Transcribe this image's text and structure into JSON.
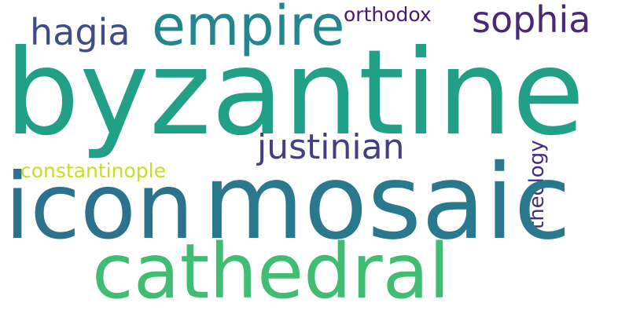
{
  "words": {
    "byzantine": {
      "text": "byzantine",
      "weight": 1.0,
      "color": "#21a087"
    },
    "mosaic": {
      "text": "mosaic",
      "weight": 0.95,
      "color": "#2a788e"
    },
    "icon": {
      "text": "icon",
      "weight": 0.8,
      "color": "#2c718e"
    },
    "cathedral": {
      "text": "cathedral",
      "weight": 0.7,
      "color": "#40bd72"
    },
    "empire": {
      "text": "empire",
      "weight": 0.45,
      "color": "#25858e"
    },
    "hagia": {
      "text": "hagia",
      "weight": 0.3,
      "color": "#3e4c8a"
    },
    "sophia": {
      "text": "sophia",
      "weight": 0.3,
      "color": "#482878"
    },
    "justinian": {
      "text": "justinian",
      "weight": 0.3,
      "color": "#433e85"
    },
    "orthodox": {
      "text": "orthodox",
      "weight": 0.18,
      "color": "#481a6c"
    },
    "theology": {
      "text": "theology",
      "weight": 0.18,
      "color": "#472c7a"
    },
    "constantinople": {
      "text": "constantinople",
      "weight": 0.18,
      "color": "#c8e020"
    }
  }
}
